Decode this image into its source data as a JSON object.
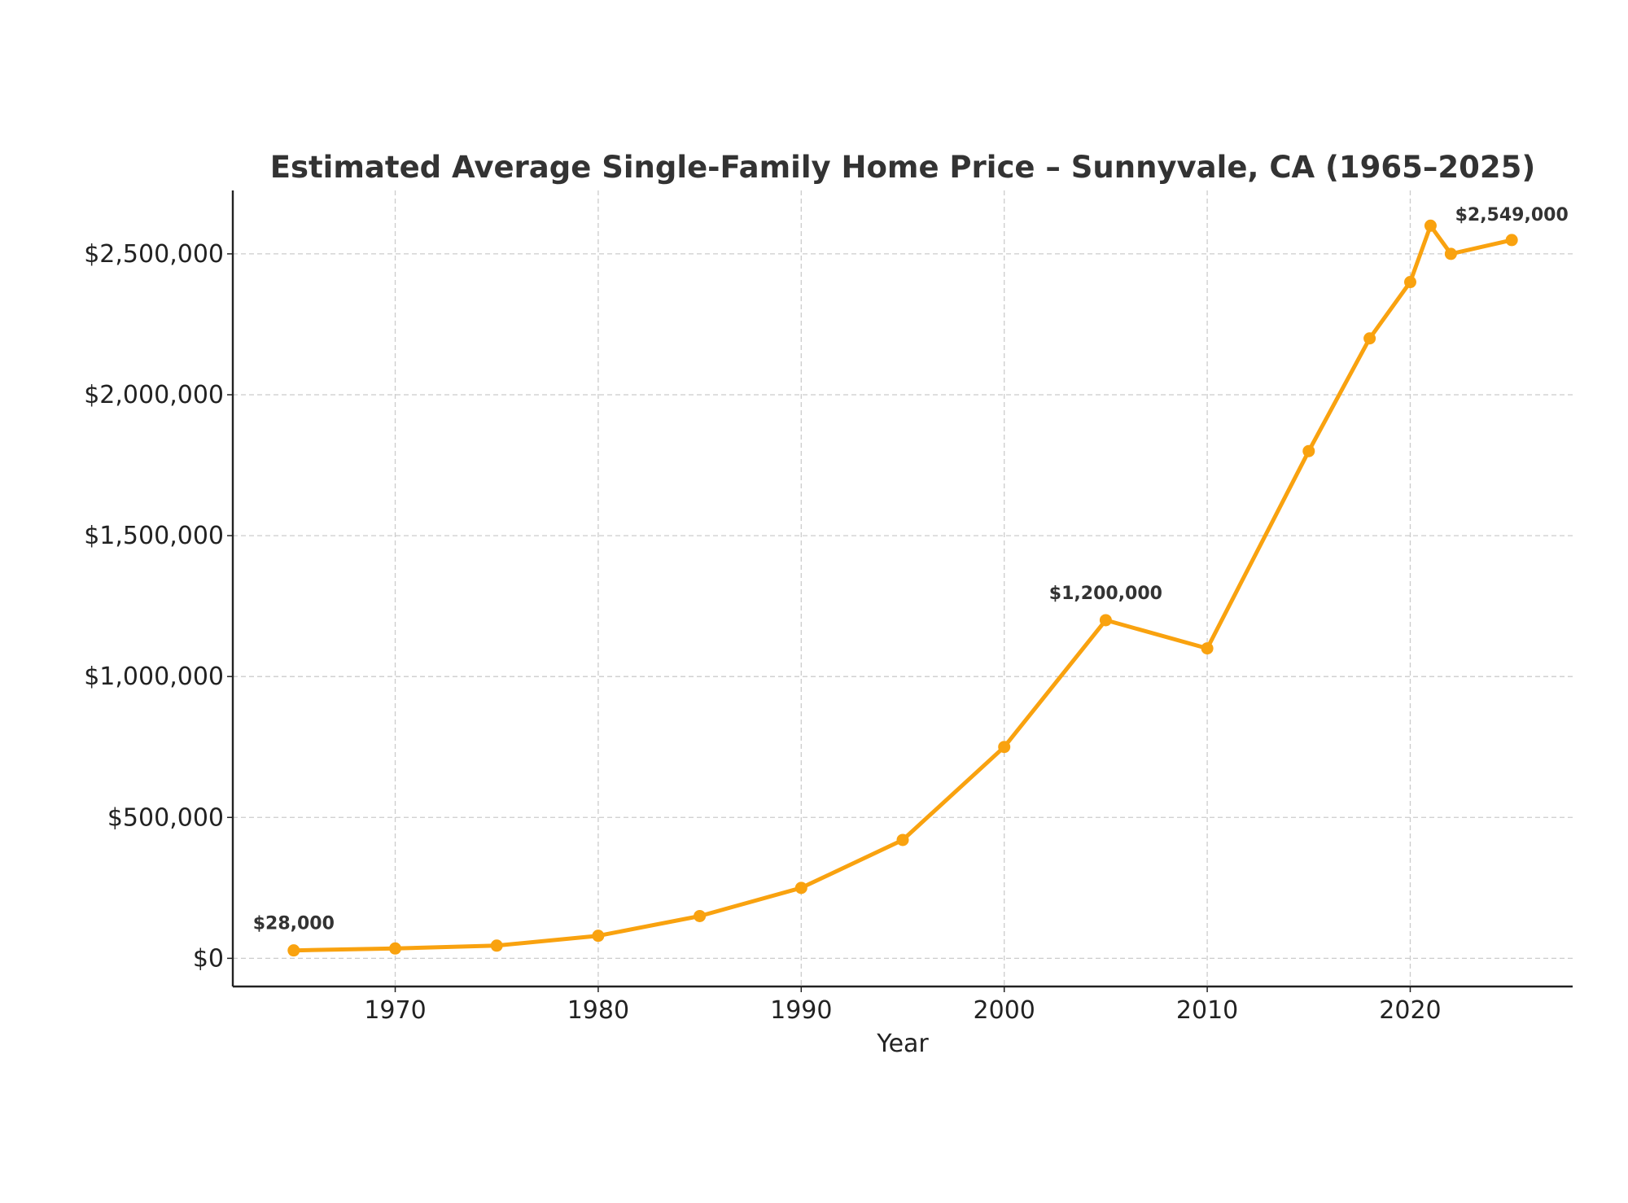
{
  "chart_data": {
    "type": "line",
    "title": "Estimated Average Single-Family Home Price – Sunnyvale, CA (1965–2025)",
    "xlabel": "Year",
    "ylabel": "",
    "xlim": [
      1962,
      2028
    ],
    "ylim": [
      -100000,
      2725000
    ],
    "x_ticks": [
      1970,
      1980,
      1990,
      2000,
      2010,
      2020
    ],
    "y_ticks": [
      0,
      500000,
      1000000,
      1500000,
      2000000,
      2500000
    ],
    "x_tick_labels": [
      "1970",
      "1980",
      "1990",
      "2000",
      "2010",
      "2020"
    ],
    "y_tick_labels": [
      "$0",
      "$500,000",
      "$1,000,000",
      "$1,500,000",
      "$2,000,000",
      "$2,500,000"
    ],
    "grid": true,
    "series": [
      {
        "name": "Average Home Price",
        "color": "#f9a20f",
        "x": [
          1965,
          1970,
          1975,
          1980,
          1985,
          1990,
          1995,
          2000,
          2005,
          2010,
          2015,
          2018,
          2020,
          2021,
          2022,
          2025
        ],
        "values": [
          28000,
          35000,
          45000,
          80000,
          150000,
          250000,
          420000,
          750000,
          1200000,
          1100000,
          1800000,
          2200000,
          2400000,
          2600000,
          2500000,
          2549000
        ]
      }
    ],
    "annotations": [
      {
        "x": 1965,
        "y": 28000,
        "text": "$28,000"
      },
      {
        "x": 2005,
        "y": 1200000,
        "text": "$1,200,000"
      },
      {
        "x": 2025,
        "y": 2549000,
        "text": "$2,549,000"
      }
    ]
  }
}
